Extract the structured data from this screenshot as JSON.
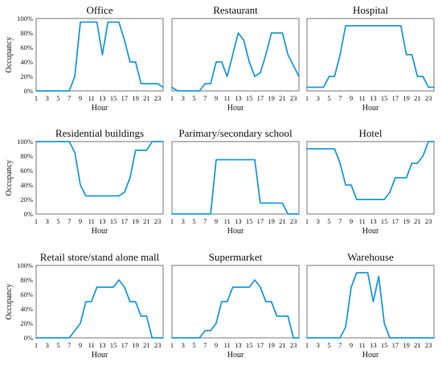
{
  "chart_data": [
    {
      "type": "line",
      "title": "Office",
      "xlabel": "Hour",
      "ylabel": "Occupancy",
      "x": [
        1,
        2,
        3,
        4,
        5,
        6,
        7,
        8,
        9,
        10,
        11,
        12,
        13,
        14,
        15,
        16,
        17,
        18,
        19,
        20,
        21,
        22,
        23,
        24
      ],
      "series": [
        {
          "values": [
            0,
            0,
            0,
            0,
            0,
            0,
            0,
            20,
            95,
            95,
            95,
            95,
            50,
            95,
            95,
            95,
            70,
            40,
            40,
            10,
            10,
            10,
            10,
            5
          ]
        }
      ],
      "yticks": [
        "0%",
        "20%",
        "40%",
        "60%",
        "80%",
        "100%"
      ],
      "xticks": [
        "1",
        "3",
        "5",
        "7",
        "9",
        "11",
        "13",
        "15",
        "17",
        "19",
        "21",
        "23"
      ],
      "ylim": [
        0,
        100
      ],
      "xlim": [
        1,
        24
      ],
      "grid": false
    },
    {
      "type": "line",
      "title": "Restaurant",
      "xlabel": "Hour",
      "ylabel": "",
      "x": [
        1,
        2,
        3,
        4,
        5,
        6,
        7,
        8,
        9,
        10,
        11,
        12,
        13,
        14,
        15,
        16,
        17,
        18,
        19,
        20,
        21,
        22,
        23,
        24
      ],
      "series": [
        {
          "values": [
            5,
            0,
            0,
            0,
            0,
            0,
            10,
            10,
            40,
            40,
            20,
            50,
            80,
            70,
            40,
            20,
            25,
            50,
            80,
            80,
            80,
            50,
            35,
            20
          ]
        }
      ],
      "yticks": [],
      "xticks": [
        "1",
        "3",
        "5",
        "7",
        "9",
        "11",
        "13",
        "15",
        "17",
        "19",
        "21",
        "23"
      ],
      "ylim": [
        0,
        100
      ],
      "xlim": [
        1,
        24
      ],
      "grid": false
    },
    {
      "type": "line",
      "title": "Hospital",
      "xlabel": "Hour",
      "ylabel": "",
      "x": [
        1,
        2,
        3,
        4,
        5,
        6,
        7,
        8,
        9,
        10,
        11,
        12,
        13,
        14,
        15,
        16,
        17,
        18,
        19,
        20,
        21,
        22,
        23,
        24
      ],
      "series": [
        {
          "values": [
            5,
            5,
            5,
            5,
            20,
            20,
            50,
            90,
            90,
            90,
            90,
            90,
            90,
            90,
            90,
            90,
            90,
            90,
            50,
            50,
            20,
            20,
            5,
            5
          ]
        }
      ],
      "yticks": [],
      "xticks": [
        "1",
        "3",
        "5",
        "7",
        "9",
        "11",
        "13",
        "15",
        "17",
        "19",
        "21",
        "23"
      ],
      "ylim": [
        0,
        100
      ],
      "xlim": [
        1,
        24
      ],
      "grid": false
    },
    {
      "type": "line",
      "title": "Residential buildings",
      "xlabel": "Hour",
      "ylabel": "Occupancy",
      "x": [
        1,
        2,
        3,
        4,
        5,
        6,
        7,
        8,
        9,
        10,
        11,
        12,
        13,
        14,
        15,
        16,
        17,
        18,
        19,
        20,
        21,
        22,
        23,
        24
      ],
      "series": [
        {
          "values": [
            100,
            100,
            100,
            100,
            100,
            100,
            100,
            85,
            40,
            25,
            25,
            25,
            25,
            25,
            25,
            25,
            30,
            50,
            88,
            88,
            88,
            100,
            100,
            100
          ]
        }
      ],
      "yticks": [
        "0%",
        "20%",
        "40%",
        "60%",
        "80%",
        "100%"
      ],
      "xticks": [
        "1",
        "3",
        "5",
        "7",
        "9",
        "11",
        "13",
        "15",
        "17",
        "19",
        "21",
        "23"
      ],
      "ylim": [
        0,
        100
      ],
      "xlim": [
        1,
        24
      ],
      "grid": false
    },
    {
      "type": "line",
      "title": "Parimary/secondary school",
      "xlabel": "Hour",
      "ylabel": "",
      "x": [
        1,
        2,
        3,
        4,
        5,
        6,
        7,
        8,
        9,
        10,
        11,
        12,
        13,
        14,
        15,
        16,
        17,
        18,
        19,
        20,
        21,
        22,
        23,
        24
      ],
      "series": [
        {
          "values": [
            0,
            0,
            0,
            0,
            0,
            0,
            0,
            0,
            75,
            75,
            75,
            75,
            75,
            75,
            75,
            75,
            15,
            15,
            15,
            15,
            15,
            0,
            0,
            0
          ]
        }
      ],
      "yticks": [],
      "xticks": [
        "1",
        "3",
        "5",
        "7",
        "9",
        "11",
        "13",
        "15",
        "17",
        "19",
        "21",
        "23"
      ],
      "ylim": [
        0,
        100
      ],
      "xlim": [
        1,
        24
      ],
      "grid": false
    },
    {
      "type": "line",
      "title": "Hotel",
      "xlabel": "Hour",
      "ylabel": "",
      "x": [
        1,
        2,
        3,
        4,
        5,
        6,
        7,
        8,
        9,
        10,
        11,
        12,
        13,
        14,
        15,
        16,
        17,
        18,
        19,
        20,
        21,
        22,
        23,
        24
      ],
      "series": [
        {
          "values": [
            90,
            90,
            90,
            90,
            90,
            90,
            70,
            40,
            40,
            20,
            20,
            20,
            20,
            20,
            20,
            30,
            50,
            50,
            50,
            70,
            70,
            80,
            100,
            100
          ]
        }
      ],
      "yticks": [],
      "xticks": [
        "1",
        "3",
        "5",
        "7",
        "9",
        "11",
        "13",
        "15",
        "17",
        "19",
        "21",
        "23"
      ],
      "ylim": [
        0,
        100
      ],
      "xlim": [
        1,
        24
      ],
      "grid": false
    },
    {
      "type": "line",
      "title": "Retail store/stand alone mall",
      "xlabel": "Hour",
      "ylabel": "Occupancy",
      "x": [
        1,
        2,
        3,
        4,
        5,
        6,
        7,
        8,
        9,
        10,
        11,
        12,
        13,
        14,
        15,
        16,
        17,
        18,
        19,
        20,
        21,
        22,
        23,
        24
      ],
      "series": [
        {
          "values": [
            0,
            0,
            0,
            0,
            0,
            0,
            0,
            10,
            20,
            50,
            50,
            70,
            70,
            70,
            70,
            80,
            70,
            50,
            50,
            30,
            30,
            0,
            0,
            0
          ]
        }
      ],
      "yticks": [
        "0%",
        "20%",
        "40%",
        "60%",
        "80%",
        "100%"
      ],
      "xticks": [
        "1",
        "3",
        "5",
        "7",
        "9",
        "11",
        "13",
        "15",
        "17",
        "19",
        "21",
        "23"
      ],
      "ylim": [
        0,
        100
      ],
      "xlim": [
        1,
        24
      ],
      "grid": false
    },
    {
      "type": "line",
      "title": "Supermarket",
      "xlabel": "Hour",
      "ylabel": "",
      "x": [
        1,
        2,
        3,
        4,
        5,
        6,
        7,
        8,
        9,
        10,
        11,
        12,
        13,
        14,
        15,
        16,
        17,
        18,
        19,
        20,
        21,
        22,
        23,
        24
      ],
      "series": [
        {
          "values": [
            0,
            0,
            0,
            0,
            0,
            0,
            10,
            10,
            20,
            50,
            50,
            70,
            70,
            70,
            70,
            80,
            70,
            50,
            50,
            30,
            30,
            30,
            0,
            0
          ]
        }
      ],
      "yticks": [],
      "xticks": [
        "1",
        "3",
        "5",
        "7",
        "9",
        "11",
        "13",
        "15",
        "17",
        "19",
        "21",
        "23"
      ],
      "ylim": [
        0,
        100
      ],
      "xlim": [
        1,
        24
      ],
      "grid": false
    },
    {
      "type": "line",
      "title": "Warehouse",
      "xlabel": "Hour",
      "ylabel": "",
      "x": [
        1,
        2,
        3,
        4,
        5,
        6,
        7,
        8,
        9,
        10,
        11,
        12,
        13,
        14,
        15,
        16,
        17,
        18,
        19,
        20,
        21,
        22,
        23,
        24
      ],
      "series": [
        {
          "values": [
            0,
            0,
            0,
            0,
            0,
            0,
            0,
            15,
            70,
            90,
            90,
            90,
            50,
            85,
            20,
            0,
            0,
            0,
            0,
            0,
            0,
            0,
            0,
            0
          ]
        }
      ],
      "yticks": [],
      "xticks": [
        "1",
        "3",
        "5",
        "7",
        "9",
        "11",
        "13",
        "15",
        "17",
        "19",
        "21",
        "23"
      ],
      "ylim": [
        0,
        100
      ],
      "xlim": [
        1,
        24
      ],
      "grid": false
    }
  ],
  "colors": {
    "series": "#1f9bd7",
    "frame": "#555555",
    "text": "#111111"
  }
}
